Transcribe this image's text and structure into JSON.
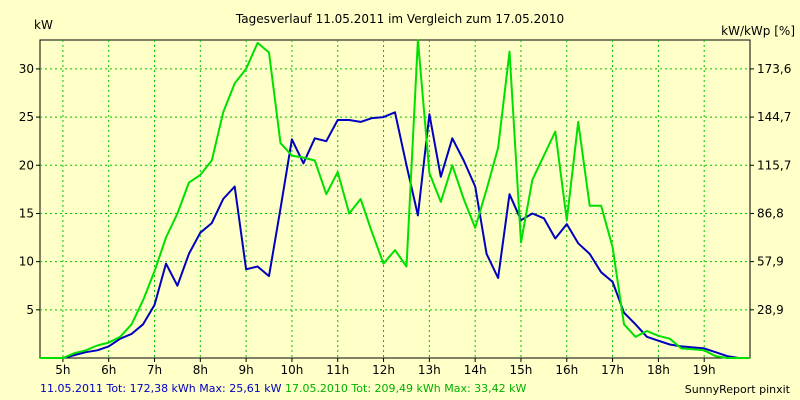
{
  "chart_data": {
    "type": "line",
    "title": "Tagesverlauf 11.05.2011 im Vergleich zum 17.05.2010",
    "ylabel_left": "kW",
    "ylabel_right": "kW/kWp [%]",
    "x_ticks": [
      "5h",
      "6h",
      "7h",
      "8h",
      "9h",
      "10h",
      "11h",
      "12h",
      "13h",
      "14h",
      "15h",
      "16h",
      "17h",
      "18h",
      "19h"
    ],
    "y_ticks_left": [
      "5",
      "10",
      "15",
      "20",
      "25",
      "30"
    ],
    "y_ticks_right": [
      "28,9",
      "57,9",
      "86,8",
      "115,7",
      "144,7",
      "173,6"
    ],
    "xlim": [
      4.5,
      20.0
    ],
    "ylim": [
      0,
      33
    ],
    "grid": true,
    "series": [
      {
        "name": "11.05.2011",
        "color": "#0000c0",
        "x": [
          4.5,
          4.75,
          5.0,
          5.25,
          5.5,
          5.75,
          6.0,
          6.25,
          6.5,
          6.75,
          7.0,
          7.25,
          7.5,
          7.75,
          8.0,
          8.25,
          8.5,
          8.75,
          9.0,
          9.25,
          9.5,
          9.75,
          10.0,
          10.25,
          10.5,
          10.75,
          11.0,
          11.25,
          11.5,
          11.75,
          12.0,
          12.25,
          12.5,
          12.75,
          13.0,
          13.25,
          13.5,
          13.75,
          14.0,
          14.25,
          14.5,
          14.75,
          15.0,
          15.25,
          15.5,
          15.75,
          16.0,
          16.25,
          16.5,
          16.75,
          17.0,
          17.25,
          17.5,
          17.75,
          18.0,
          18.25,
          18.5,
          18.75,
          19.0,
          19.25,
          19.5,
          19.75,
          20.0
        ],
        "y": [
          0,
          0,
          0,
          0.3,
          0.6,
          0.8,
          1.2,
          2.0,
          2.5,
          3.5,
          5.5,
          9.8,
          7.5,
          10.8,
          13.0,
          14.0,
          16.5,
          17.8,
          9.2,
          9.5,
          8.5,
          15.5,
          22.7,
          20.2,
          22.8,
          22.5,
          24.7,
          24.7,
          24.5,
          24.9,
          25.0,
          25.5,
          20.0,
          14.8,
          25.3,
          18.8,
          22.8,
          20.5,
          17.8,
          10.8,
          8.3,
          17.0,
          14.3,
          15.0,
          14.5,
          12.4,
          13.9,
          11.9,
          10.8,
          8.9,
          7.9,
          4.7,
          3.5,
          2.2,
          1.8,
          1.4,
          1.2,
          1.1,
          1.0,
          0.6,
          0.2,
          0,
          0
        ]
      },
      {
        "name": "17.05.2010",
        "color": "#00e000",
        "x": [
          4.5,
          4.75,
          5.0,
          5.25,
          5.5,
          5.75,
          6.0,
          6.25,
          6.5,
          6.75,
          7.0,
          7.25,
          7.5,
          7.75,
          8.0,
          8.25,
          8.5,
          8.75,
          9.0,
          9.25,
          9.5,
          9.75,
          10.0,
          10.25,
          10.5,
          10.75,
          11.0,
          11.25,
          11.5,
          11.75,
          12.0,
          12.25,
          12.5,
          12.75,
          13.0,
          13.25,
          13.5,
          13.75,
          14.0,
          14.25,
          14.5,
          14.75,
          15.0,
          15.25,
          15.5,
          15.75,
          16.0,
          16.25,
          16.5,
          16.75,
          17.0,
          17.25,
          17.5,
          17.75,
          18.0,
          18.25,
          18.5,
          18.75,
          19.0,
          19.25,
          19.5,
          19.75,
          20.0
        ],
        "y": [
          0,
          0,
          0,
          0.5,
          0.8,
          1.3,
          1.6,
          2.2,
          3.5,
          6.0,
          9.0,
          12.5,
          15.0,
          18.2,
          19.0,
          20.5,
          25.5,
          28.5,
          30.0,
          32.7,
          31.7,
          22.3,
          21.0,
          20.8,
          20.5,
          17.0,
          19.3,
          15.0,
          16.5,
          13.0,
          9.8,
          11.2,
          9.5,
          33.3,
          19.2,
          16.2,
          20.0,
          16.5,
          13.5,
          17.5,
          21.8,
          31.8,
          12.0,
          18.5,
          21.0,
          23.5,
          14.3,
          24.5,
          15.8,
          15.8,
          11.5,
          3.5,
          2.2,
          2.8,
          2.3,
          2.0,
          1.0,
          0.9,
          0.8,
          0.2,
          0,
          0,
          0
        ]
      }
    ]
  },
  "footer": {
    "series1_summary": "11.05.2011 Tot: 172,38 kWh Max: 25,61 kW",
    "series2_summary": " 17.05.2010 Tot: 209,49 kWh Max: 33,42 kW",
    "brand": "SunnyReport pinxit"
  }
}
